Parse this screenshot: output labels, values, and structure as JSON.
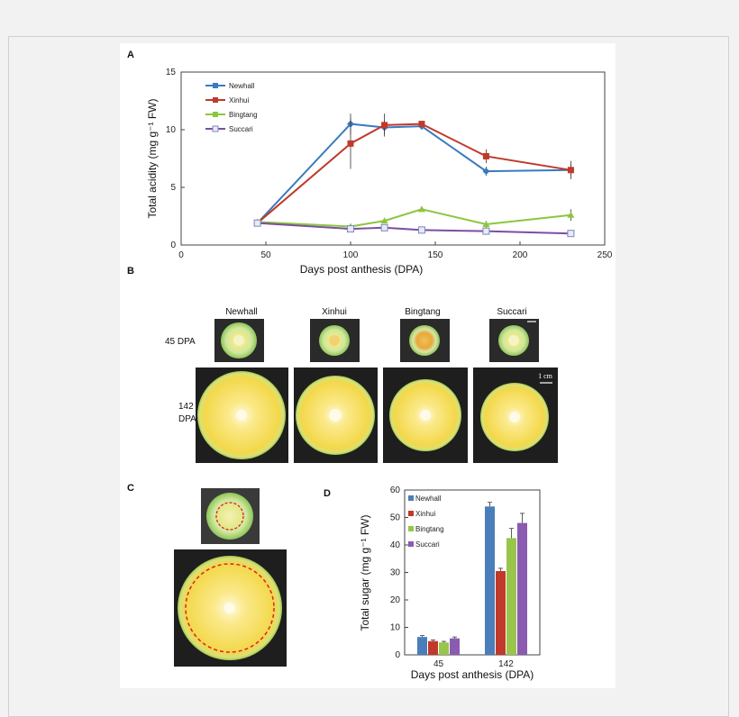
{
  "panels": {
    "a": "A",
    "b": "B",
    "c": "C",
    "d": "D"
  },
  "panel_b": {
    "cultivars": [
      "Newhall",
      "Xinhui",
      "Bingtang",
      "Succari"
    ],
    "row_45": "45 DPA",
    "row_142_line1": "142",
    "row_142_line2": "DPA",
    "scale_label": "1 cm"
  },
  "chart_data": [
    {
      "type": "line",
      "panel": "A",
      "xlabel": "Days post anthesis (DPA)",
      "ylabel": "Total acidity (mg g⁻¹ FW)",
      "xlim": [
        0,
        250
      ],
      "ylim": [
        0,
        15
      ],
      "xticks": [
        0,
        50,
        100,
        150,
        200,
        250
      ],
      "yticks": [
        0,
        5,
        10,
        15
      ],
      "x": [
        45,
        100,
        120,
        142,
        180,
        230
      ],
      "legend_position": "top-left",
      "series": [
        {
          "name": "Newhall",
          "color": "#3a7bbf",
          "marker": "diamond",
          "values": [
            1.9,
            10.5,
            10.2,
            10.3,
            6.4,
            6.5
          ],
          "errors": [
            0.1,
            0.9,
            0.6,
            0.3,
            0.4,
            0.5
          ]
        },
        {
          "name": "Xinhui",
          "color": "#c0392b",
          "marker": "square",
          "values": [
            1.9,
            8.8,
            10.4,
            10.5,
            7.7,
            6.5
          ],
          "errors": [
            0.1,
            2.2,
            1.0,
            0.2,
            0.6,
            0.8
          ]
        },
        {
          "name": "Bingtang",
          "color": "#8cc63f",
          "marker": "triangle",
          "values": [
            2.0,
            1.6,
            2.1,
            3.1,
            1.8,
            2.6
          ],
          "errors": [
            0.1,
            0.1,
            0.2,
            0.2,
            0.3,
            0.5
          ]
        },
        {
          "name": "Succari",
          "color": "#7b4fa0",
          "marker": "open-square",
          "values": [
            1.9,
            1.4,
            1.5,
            1.3,
            1.2,
            1.0
          ],
          "errors": [
            0.1,
            0.1,
            0.1,
            0.1,
            0.1,
            0.1
          ]
        }
      ]
    },
    {
      "type": "bar",
      "panel": "D",
      "xlabel": "Days post anthesis (DPA)",
      "ylabel": "Total sugar (mg g⁻¹ FW)",
      "categories": [
        "45",
        "142"
      ],
      "ylim": [
        0,
        60
      ],
      "yticks": [
        0,
        10,
        20,
        30,
        40,
        50,
        60
      ],
      "legend_position": "top-left",
      "series": [
        {
          "name": "Newhall",
          "color": "#4a7ebb",
          "values": [
            6.5,
            54.0
          ],
          "errors": [
            0.5,
            1.5
          ]
        },
        {
          "name": "Xinhui",
          "color": "#c0392b",
          "values": [
            5.0,
            30.5
          ],
          "errors": [
            0.4,
            1.0
          ]
        },
        {
          "name": "Bingtang",
          "color": "#98c54a",
          "values": [
            4.5,
            42.5
          ],
          "errors": [
            0.4,
            3.5
          ]
        },
        {
          "name": "Succari",
          "color": "#8a5bb0",
          "values": [
            6.0,
            48.0
          ],
          "errors": [
            0.5,
            3.5
          ]
        }
      ]
    }
  ]
}
